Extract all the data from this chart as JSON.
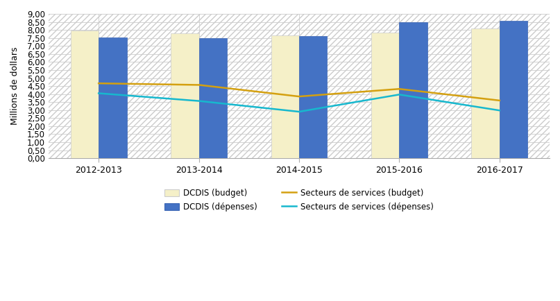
{
  "categories": [
    "2012-2013",
    "2013-2014",
    "2014-2015",
    "2015-2016",
    "2016-2017"
  ],
  "dcdis_budget": [
    7.98,
    7.78,
    7.68,
    7.82,
    8.1
  ],
  "dcdis_depenses": [
    7.52,
    7.5,
    7.62,
    8.47,
    8.55
  ],
  "secteurs_budget": [
    4.67,
    4.57,
    3.85,
    4.32,
    3.6
  ],
  "secteurs_depenses": [
    4.05,
    3.57,
    2.9,
    3.97,
    2.98
  ],
  "bar_color_budget": "#f5f0c8",
  "bar_color_depenses": "#4472c4",
  "line_color_budget": "#d4a010",
  "line_color_depenses": "#17b8ce",
  "ylabel": "Millions de dollars",
  "ylim": [
    0,
    9.0
  ],
  "yticks": [
    0.0,
    0.5,
    1.0,
    1.5,
    2.0,
    2.5,
    3.0,
    3.5,
    4.0,
    4.5,
    5.0,
    5.5,
    6.0,
    6.5,
    7.0,
    7.5,
    8.0,
    8.5,
    9.0
  ],
  "legend_dcdis_budget": "DCDIS (budget)",
  "legend_dcdis_depenses": "DCDIS (dépenses)",
  "legend_secteurs_budget": "Secteurs de services (budget)",
  "legend_secteurs_depenses": "Secteurs de services (dépenses)",
  "bar_width": 0.28,
  "background_color": "#ffffff",
  "plot_bg_color": "#ffffff",
  "grid_color": "#cccccc"
}
